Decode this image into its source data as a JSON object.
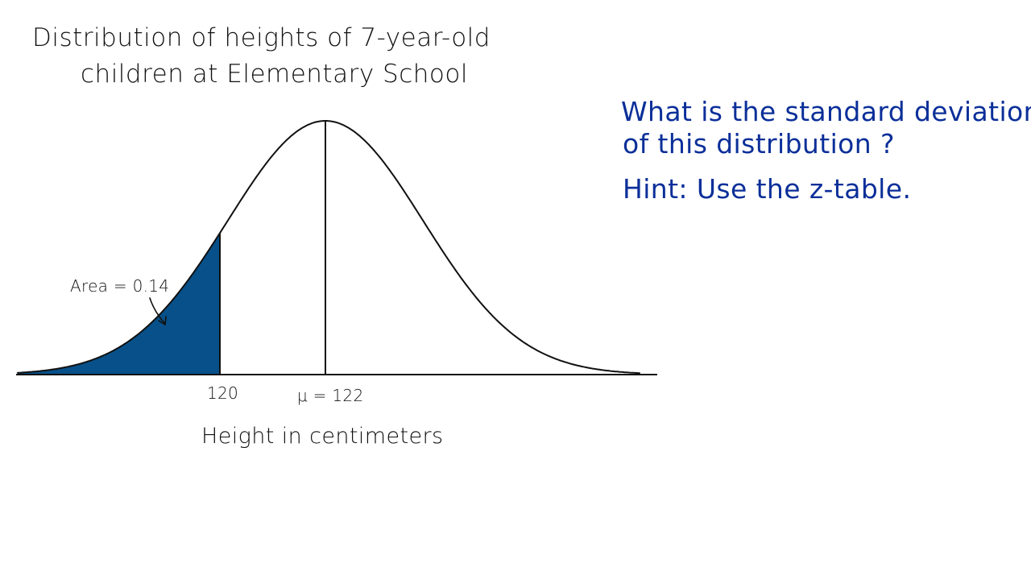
{
  "title": {
    "line1": "Distribution of heights of 7-year-old",
    "line2": "children at Elementary School"
  },
  "annotations": {
    "area_label": "Area = 0.14",
    "left_tick_label": "120",
    "mean_label": "μ = 122",
    "x_axis_label": "Height in centimeters"
  },
  "question": {
    "line1": "What is the standard deviation",
    "line2": "of this distribution ?",
    "hint": "Hint: Use the z-table."
  },
  "colors": {
    "shaded_area": "#075089",
    "question_ink": "#0b2f99",
    "line_ink": "#111111"
  },
  "chart_data": {
    "type": "area",
    "distribution": "normal",
    "mean": 122,
    "marked_value": 120,
    "shaded_area_left_of_marked_value": 0.14
  }
}
